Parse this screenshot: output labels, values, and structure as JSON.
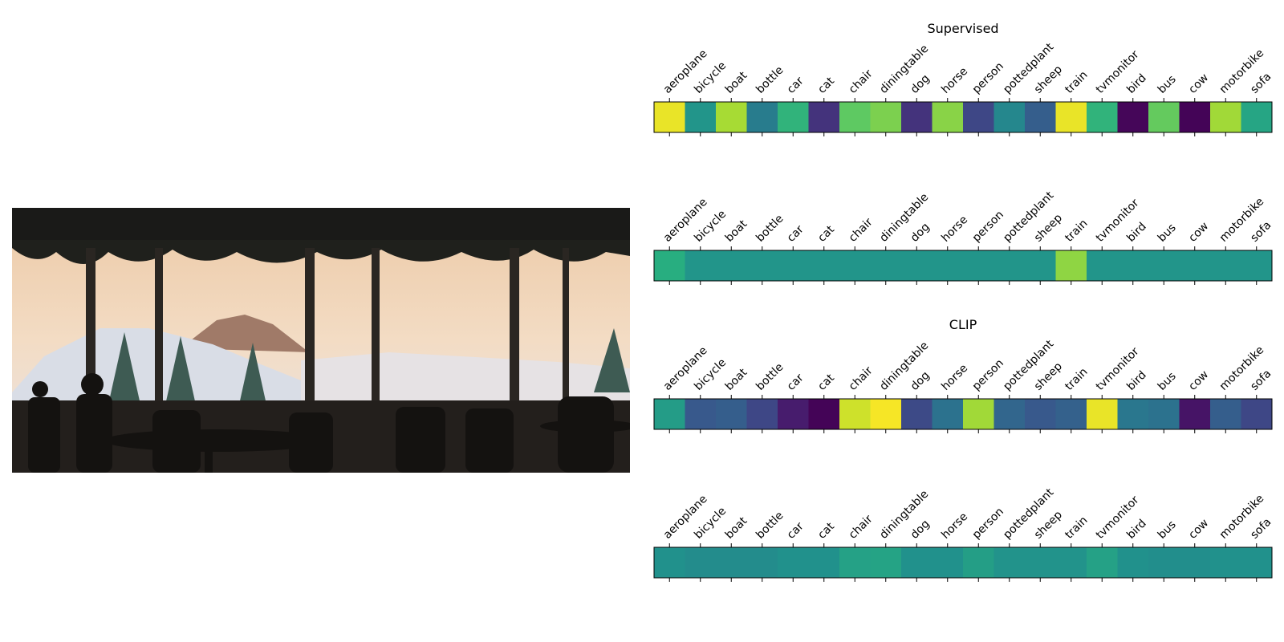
{
  "colormap": "viridis",
  "image": {
    "subject": "restaurant interior silhouetted against large windows with snowy mountain view"
  },
  "chart_data": [
    {
      "type": "heatmap",
      "title": "Supervised",
      "categories": [
        "aeroplane",
        "bicycle",
        "boat",
        "bottle",
        "car",
        "cat",
        "chair",
        "diningtable",
        "dog",
        "horse",
        "person",
        "pottedplant",
        "sheep",
        "train",
        "tvmonitor",
        "bird",
        "bus",
        "cow",
        "motorbike",
        "sofa"
      ],
      "values": [
        0.97,
        0.52,
        0.87,
        0.42,
        0.65,
        0.17,
        0.75,
        0.8,
        0.17,
        0.82,
        0.22,
        0.46,
        0.3,
        0.97,
        0.65,
        0.02,
        0.76,
        0.01,
        0.86,
        0.59
      ]
    },
    {
      "type": "heatmap",
      "title": "",
      "categories": [
        "aeroplane",
        "bicycle",
        "boat",
        "bottle",
        "car",
        "cat",
        "chair",
        "diningtable",
        "dog",
        "horse",
        "person",
        "pottedplant",
        "sheep",
        "train",
        "tvmonitor",
        "bird",
        "bus",
        "cow",
        "motorbike",
        "sofa"
      ],
      "values": [
        0.63,
        0.52,
        0.52,
        0.52,
        0.52,
        0.52,
        0.52,
        0.52,
        0.52,
        0.52,
        0.52,
        0.52,
        0.52,
        0.83,
        0.52,
        0.52,
        0.52,
        0.52,
        0.52,
        0.52
      ]
    },
    {
      "type": "heatmap",
      "title": "CLIP",
      "categories": [
        "aeroplane",
        "bicycle",
        "boat",
        "bottle",
        "car",
        "cat",
        "chair",
        "diningtable",
        "dog",
        "horse",
        "person",
        "pottedplant",
        "sheep",
        "train",
        "tvmonitor",
        "bird",
        "bus",
        "cow",
        "motorbike",
        "sofa"
      ],
      "values": [
        0.55,
        0.28,
        0.3,
        0.22,
        0.1,
        0.01,
        0.93,
        0.99,
        0.23,
        0.38,
        0.86,
        0.33,
        0.28,
        0.31,
        0.97,
        0.4,
        0.38,
        0.07,
        0.3,
        0.22
      ]
    },
    {
      "type": "heatmap",
      "title": "",
      "categories": [
        "aeroplane",
        "bicycle",
        "boat",
        "bottle",
        "car",
        "cat",
        "chair",
        "diningtable",
        "dog",
        "horse",
        "person",
        "pottedplant",
        "sheep",
        "train",
        "tvmonitor",
        "bird",
        "bus",
        "cow",
        "motorbike",
        "sofa"
      ],
      "values": [
        0.5,
        0.48,
        0.48,
        0.48,
        0.5,
        0.5,
        0.57,
        0.58,
        0.5,
        0.5,
        0.56,
        0.51,
        0.51,
        0.51,
        0.57,
        0.5,
        0.49,
        0.49,
        0.5,
        0.5
      ]
    }
  ]
}
